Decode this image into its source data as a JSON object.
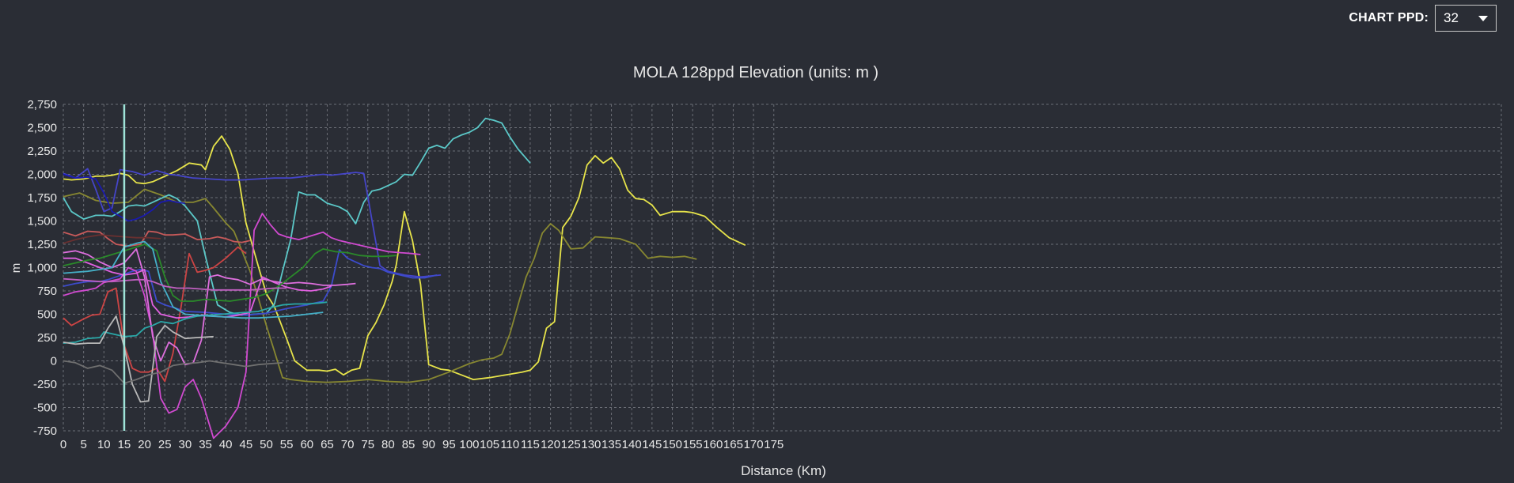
{
  "controls": {
    "ppd_label": "CHART PPD:",
    "ppd_value": "32"
  },
  "chart_data": {
    "type": "line",
    "title": "MOLA 128ppd Elevation (units: m )",
    "xlabel": "Distance (Km)",
    "ylabel": "m",
    "xlim": [
      0,
      175
    ],
    "ylim": [
      -750,
      2750
    ],
    "x_ticks": [
      "0",
      "5",
      "10",
      "15",
      "20",
      "25",
      "30",
      "35",
      "40",
      "45",
      "50",
      "55",
      "60",
      "65",
      "70",
      "75",
      "80",
      "85",
      "90",
      "95",
      "100",
      "105",
      "110",
      "115",
      "120",
      "125",
      "130",
      "135",
      "140",
      "145",
      "150",
      "155",
      "160",
      "165",
      "170",
      "175"
    ],
    "y_ticks": [
      "2,750",
      "2,500",
      "2,250",
      "2,000",
      "1,750",
      "1,500",
      "1,250",
      "1,000",
      "750",
      "500",
      "250",
      "0",
      "-250",
      "-500",
      "-750"
    ],
    "grid": true,
    "cursor_x": 15,
    "series": [
      {
        "color": "#e7e44a",
        "x": [
          0,
          2,
          5,
          8,
          10,
          12,
          14,
          16,
          18,
          20,
          22,
          25,
          28,
          31,
          34,
          35,
          37,
          39,
          41,
          43,
          45,
          48,
          50,
          52,
          55,
          57,
          60,
          63,
          65,
          67,
          69,
          71,
          73,
          75,
          77,
          79,
          81,
          82,
          84,
          86,
          88,
          90,
          93,
          95,
          98,
          101,
          105,
          109,
          113,
          115,
          117,
          119,
          121,
          123,
          125,
          127,
          129,
          131,
          133,
          135,
          137,
          139,
          141,
          143,
          145,
          147,
          150,
          153,
          155,
          158,
          161,
          164,
          168
        ],
        "y": [
          1950,
          1940,
          1950,
          1980,
          1980,
          1990,
          2010,
          1990,
          1910,
          1900,
          1920,
          1980,
          2040,
          2120,
          2100,
          2050,
          2300,
          2410,
          2270,
          2010,
          1480,
          1020,
          720,
          580,
          240,
          0,
          -100,
          -100,
          -110,
          -90,
          -150,
          -100,
          -80,
          270,
          410,
          600,
          850,
          1030,
          1600,
          1290,
          820,
          -40,
          -90,
          -100,
          -150,
          -200,
          -180,
          -150,
          -120,
          -100,
          -10,
          350,
          420,
          1430,
          1550,
          1750,
          2100,
          2200,
          2120,
          2180,
          2060,
          1830,
          1740,
          1730,
          1670,
          1560,
          1600,
          1600,
          1590,
          1550,
          1430,
          1320,
          1240
        ]
      },
      {
        "color": "#878731",
        "x": [
          0,
          4,
          8,
          12,
          16,
          20,
          24,
          28,
          32,
          35,
          37,
          40,
          42,
          44,
          46,
          48,
          50,
          52,
          54,
          56,
          60,
          65,
          70,
          75,
          80,
          85,
          90,
          95,
          100,
          103,
          106,
          108,
          110,
          112,
          114,
          116,
          118,
          120,
          122,
          125,
          128,
          131,
          134,
          137,
          141,
          144,
          147,
          150,
          153,
          156
        ],
        "y": [
          1760,
          1800,
          1720,
          1690,
          1700,
          1840,
          1780,
          1700,
          1700,
          1740,
          1640,
          1480,
          1390,
          1180,
          960,
          680,
          380,
          100,
          -180,
          -200,
          -220,
          -230,
          -220,
          -200,
          -220,
          -230,
          -200,
          -120,
          -30,
          10,
          30,
          70,
          290,
          600,
          900,
          1100,
          1370,
          1470,
          1400,
          1200,
          1210,
          1330,
          1320,
          1310,
          1250,
          1100,
          1120,
          1110,
          1120,
          1090
        ]
      },
      {
        "color": "#5bc8c8",
        "x": [
          0,
          2,
          5,
          8,
          10,
          12,
          14,
          16,
          18,
          20,
          22,
          24,
          26,
          28,
          30,
          33,
          35,
          38,
          41,
          44,
          47,
          50,
          52,
          54,
          56,
          58,
          60,
          62,
          65,
          68,
          70,
          72,
          74,
          76,
          78,
          80,
          82,
          84,
          86,
          88,
          90,
          92,
          94,
          96,
          98,
          100,
          102,
          104,
          106,
          108,
          110,
          112,
          115
        ],
        "y": [
          1750,
          1600,
          1520,
          1560,
          1560,
          1550,
          1600,
          1660,
          1670,
          1660,
          1700,
          1740,
          1780,
          1740,
          1660,
          1500,
          1120,
          600,
          520,
          490,
          500,
          510,
          610,
          960,
          1300,
          1810,
          1780,
          1780,
          1690,
          1650,
          1600,
          1470,
          1700,
          1820,
          1840,
          1880,
          1920,
          2000,
          1990,
          2130,
          2280,
          2310,
          2280,
          2380,
          2420,
          2450,
          2500,
          2600,
          2580,
          2550,
          2400,
          2270,
          2120
        ]
      },
      {
        "color": "#4545c8",
        "x": [
          0,
          3,
          6,
          8,
          10,
          12,
          14,
          17,
          20,
          23,
          26,
          28,
          32,
          36,
          40,
          44,
          48,
          52,
          56,
          60,
          64,
          66,
          68,
          70,
          72,
          74,
          78,
          80,
          84,
          88,
          93
        ],
        "y": [
          2010,
          1960,
          2060,
          1840,
          1600,
          1640,
          2050,
          2030,
          1990,
          2040,
          2000,
          1990,
          1960,
          1950,
          1940,
          1940,
          1950,
          1960,
          1960,
          1980,
          2000,
          1990,
          2000,
          2010,
          2020,
          2010,
          1020,
          960,
          920,
          900,
          920
        ]
      },
      {
        "color": "#3c4bcc",
        "x": [
          0,
          3,
          6,
          9,
          11,
          13,
          15,
          17,
          19,
          21,
          23,
          25,
          28,
          30,
          35,
          40,
          45,
          50,
          55,
          60,
          62,
          64,
          66,
          68,
          70,
          72,
          74,
          76,
          78,
          80,
          83,
          86,
          89,
          92
        ],
        "y": [
          800,
          830,
          850,
          850,
          870,
          900,
          930,
          960,
          980,
          960,
          640,
          600,
          560,
          530,
          520,
          500,
          490,
          510,
          560,
          600,
          620,
          640,
          800,
          1190,
          1100,
          1060,
          1020,
          1000,
          990,
          950,
          920,
          890,
          890,
          920
        ]
      },
      {
        "color": "#cc4444",
        "x": [
          0,
          2,
          5,
          7,
          9,
          11,
          13,
          15,
          17,
          19,
          21,
          23,
          25,
          27,
          29,
          31,
          33,
          35,
          37,
          40,
          43,
          45
        ],
        "y": [
          460,
          380,
          450,
          490,
          500,
          740,
          780,
          170,
          -80,
          -120,
          -120,
          -80,
          -220,
          80,
          580,
          1150,
          950,
          970,
          1000,
          1100,
          1220,
          1150
        ]
      },
      {
        "color": "#c85a5a",
        "x": [
          0,
          3,
          6,
          9,
          11,
          13,
          16,
          19,
          21,
          23,
          25,
          27,
          30,
          33,
          36,
          38,
          40,
          42,
          44,
          46
        ],
        "y": [
          1380,
          1340,
          1390,
          1380,
          1310,
          1250,
          1230,
          1250,
          1390,
          1380,
          1350,
          1350,
          1360,
          1300,
          1310,
          1330,
          1310,
          1280,
          1270,
          1290
        ]
      },
      {
        "color": "#d04ad0",
        "x": [
          0,
          3,
          6,
          8,
          10,
          12,
          14,
          16,
          18,
          20,
          22,
          24,
          26,
          28,
          30,
          32,
          34,
          37,
          40,
          43,
          45,
          47,
          49,
          51,
          53,
          55,
          58,
          61,
          64,
          66,
          68,
          70,
          72,
          74,
          77,
          80,
          83,
          86,
          88
        ],
        "y": [
          700,
          740,
          760,
          780,
          840,
          860,
          880,
          1000,
          960,
          700,
          300,
          -400,
          -560,
          -520,
          -280,
          -200,
          -400,
          -830,
          -700,
          -500,
          -120,
          1400,
          1580,
          1460,
          1360,
          1330,
          1300,
          1340,
          1380,
          1320,
          1290,
          1270,
          1250,
          1230,
          1200,
          1170,
          1160,
          1150,
          1140
        ]
      },
      {
        "color": "#e060e0",
        "x": [
          0,
          3,
          6,
          9,
          12,
          15,
          18,
          20,
          22,
          24,
          26,
          28,
          31,
          34,
          37,
          40,
          43,
          46,
          49,
          52,
          55,
          58,
          61,
          64,
          66
        ],
        "y": [
          1100,
          1100,
          1050,
          1000,
          950,
          920,
          940,
          980,
          600,
          500,
          480,
          460,
          470,
          490,
          480,
          470,
          490,
          520,
          900,
          840,
          790,
          760,
          750,
          770,
          800
        ]
      },
      {
        "color": "#de6fde",
        "x": [
          0,
          3,
          6,
          9,
          12,
          15,
          18,
          20,
          22,
          24,
          26,
          28,
          30,
          32,
          34,
          36,
          38,
          40,
          43,
          46,
          49,
          52,
          55,
          58,
          61,
          64,
          67,
          70,
          72
        ],
        "y": [
          1160,
          1180,
          1140,
          1060,
          1000,
          1050,
          1200,
          900,
          260,
          0,
          200,
          140,
          -40,
          -20,
          220,
          900,
          920,
          890,
          870,
          820,
          880,
          850,
          830,
          840,
          830,
          810,
          810,
          820,
          830
        ]
      },
      {
        "color": "#2a8a2a",
        "x": [
          0,
          3,
          6,
          9,
          12,
          15,
          18,
          20,
          23,
          25,
          27,
          29,
          32,
          35,
          38,
          41,
          44,
          47,
          50,
          53,
          56,
          59,
          62,
          64,
          67,
          70,
          73,
          76,
          79,
          82
        ],
        "y": [
          1020,
          1050,
          1080,
          1100,
          1140,
          1180,
          1220,
          1250,
          1180,
          900,
          700,
          640,
          640,
          660,
          650,
          640,
          660,
          680,
          720,
          800,
          900,
          1000,
          1150,
          1200,
          1170,
          1160,
          1130,
          1120,
          1120,
          1130
        ]
      },
      {
        "color": "#2aa8a8",
        "x": [
          0,
          3,
          6,
          9,
          10,
          12,
          15,
          18,
          20,
          22,
          24,
          27,
          30,
          33,
          36,
          39,
          42,
          45,
          48,
          51,
          54,
          57,
          60,
          63,
          65
        ],
        "y": [
          190,
          200,
          240,
          250,
          310,
          290,
          260,
          270,
          350,
          380,
          420,
          400,
          450,
          480,
          490,
          500,
          510,
          520,
          530,
          570,
          600,
          610,
          610,
          620,
          630
        ]
      },
      {
        "color": "#45b0c8",
        "x": [
          0,
          3,
          6,
          9,
          12,
          15,
          18,
          20,
          22,
          24,
          27,
          30,
          33,
          36,
          40,
          44,
          48,
          52,
          56,
          60,
          64
        ],
        "y": [
          940,
          950,
          960,
          980,
          1000,
          1220,
          1260,
          1280,
          1200,
          850,
          580,
          500,
          490,
          480,
          470,
          460,
          460,
          470,
          480,
          500,
          520
        ]
      },
      {
        "color": "#b8b8b8",
        "x": [
          0,
          3,
          6,
          9,
          11,
          13,
          15,
          17,
          19,
          21,
          23,
          25,
          27,
          30,
          33,
          37
        ],
        "y": [
          200,
          180,
          190,
          190,
          350,
          480,
          150,
          -250,
          -440,
          -430,
          260,
          380,
          310,
          240,
          250,
          260
        ]
      },
      {
        "color": "#707070",
        "x": [
          0,
          3,
          6,
          9,
          12,
          15,
          18,
          21,
          24,
          27,
          30,
          33,
          36,
          39,
          42,
          45,
          48,
          51,
          54
        ],
        "y": [
          0,
          -20,
          -80,
          -50,
          -100,
          -240,
          -200,
          -150,
          -120,
          -50,
          -30,
          -20,
          0,
          -20,
          -40,
          -60,
          -40,
          -30,
          -20
        ]
      },
      {
        "color": "#1a1ab0",
        "x": [
          0,
          3,
          6,
          8,
          10,
          12,
          14,
          16,
          18,
          20,
          22,
          24,
          26,
          28,
          30
        ],
        "y": [
          2000,
          1960,
          1970,
          1950,
          1800,
          1600,
          1550,
          1500,
          1520,
          1560,
          1620,
          1700,
          1720,
          1700,
          1690
        ]
      },
      {
        "color": "#c060c0",
        "x": [
          0,
          3,
          6,
          9,
          12,
          15,
          18,
          20,
          22,
          25,
          28,
          31,
          34,
          37,
          40,
          43,
          46,
          49,
          52,
          55
        ],
        "y": [
          880,
          870,
          860,
          850,
          850,
          860,
          870,
          870,
          850,
          800,
          780,
          780,
          770,
          760,
          760,
          760,
          760,
          770,
          780,
          780
        ]
      },
      {
        "color": "#6a3030",
        "x": [
          0,
          3,
          6,
          9,
          12,
          15,
          18,
          21,
          24
        ],
        "y": [
          1260,
          1300,
          1330,
          1350,
          1340,
          1330,
          1320,
          1320,
          1310
        ]
      }
    ]
  }
}
